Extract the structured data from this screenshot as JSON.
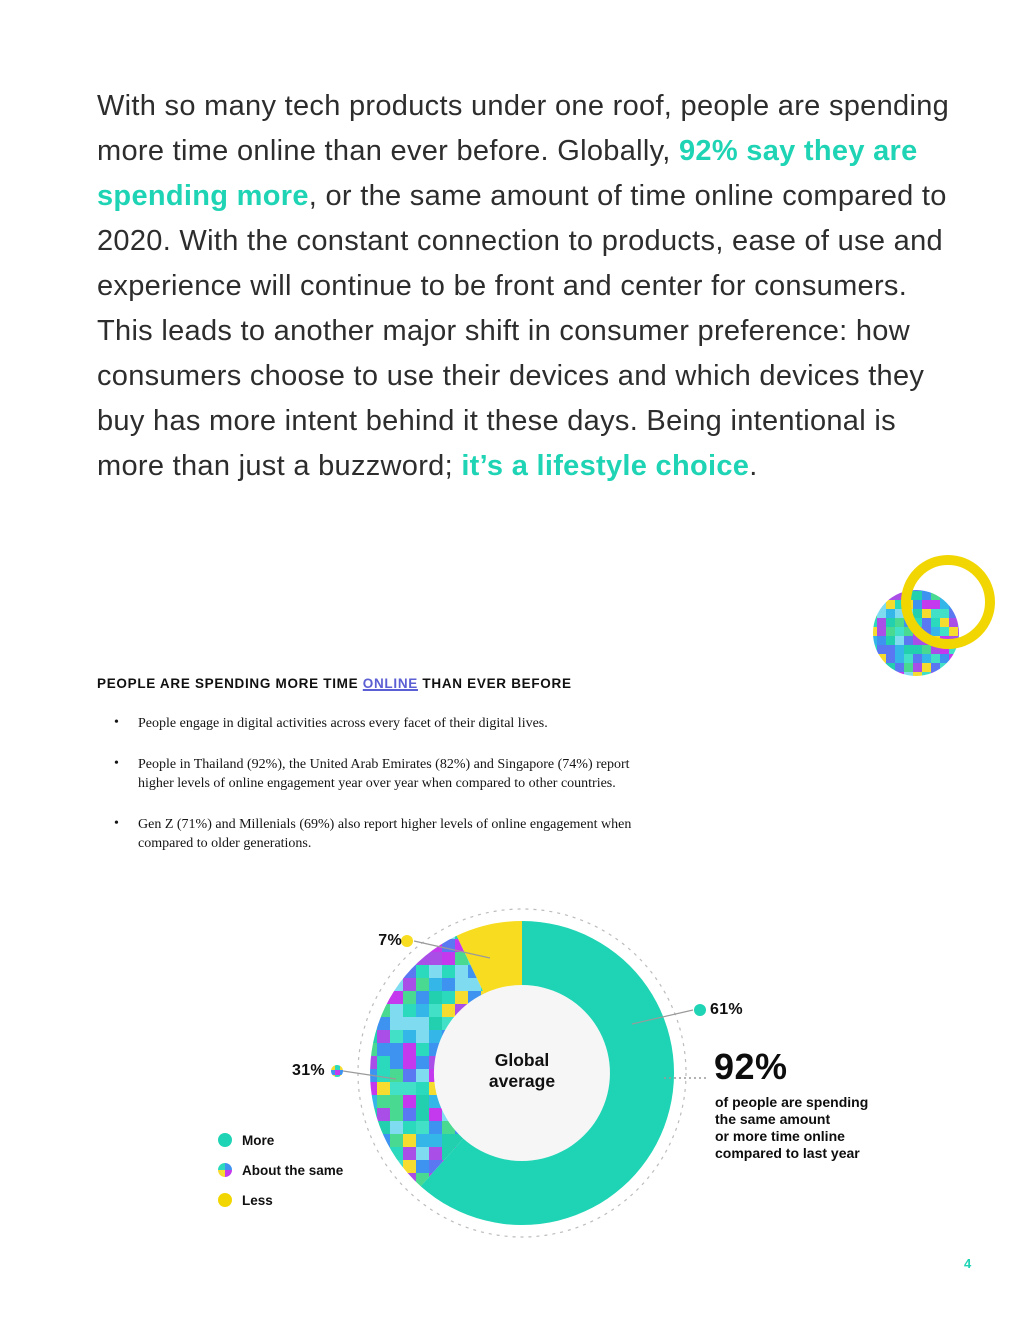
{
  "colors": {
    "accent": "#1fd4b4",
    "yellow_ring": "#f2d602",
    "chart_yellow": "#f8dc20",
    "link": "#5c5fd3",
    "leader_line": "#9a9a9a"
  },
  "pixel_palette": [
    "#2bd9bd",
    "#22cfae",
    "#43e0c8",
    "#35b6e8",
    "#3f93f0",
    "#5a78f2",
    "#7fdcf0",
    "#c438ee",
    "#a94fe8",
    "#f5dc2e",
    "#49d990"
  ],
  "intro": {
    "part1": "With so many tech products under one roof, people are spending more time online than ever before. Globally, ",
    "highlight1": "92% say they are spending more",
    "part2": ", or the same amount of time online compared to 2020. With the constant connection to products, ease of use and experience will continue to be front and center for consumers. This leads to another major shift in consumer preference: how consumers choose to use their devices and which devices they buy has more intent behind it these days. Being intentional is more than just a buzzword; ",
    "highlight2": "it’s a lifestyle choice",
    "part3": "."
  },
  "section": {
    "heading_pre": "PEOPLE ARE SPENDING MORE TIME ",
    "heading_link": "ONLINE",
    "heading_post": " THAN EVER BEFORE",
    "bullets": [
      "People engage in digital activities across every facet of their digital lives.",
      "People in Thailand (92%), the United Arab Emirates (82%) and Singapore (74%) report higher levels of online engagement year over year when compared to other countries.",
      "Gen Z (71%) and Millenials (69%) also report higher levels of online engagement when compared to older generations."
    ]
  },
  "chart_data": {
    "type": "pie",
    "subtype": "donut",
    "title": "Global average",
    "center": [
      "Global",
      "average"
    ],
    "categories": [
      "More",
      "About the same",
      "Less"
    ],
    "values": [
      61,
      31,
      7
    ],
    "unit": "%",
    "pct_labels": {
      "more": "61%",
      "same": "31%",
      "less": "7%"
    },
    "legend": [
      "More",
      "About the same",
      "Less"
    ],
    "legend_position": "left",
    "callout": {
      "value": "92%",
      "lines": [
        "of people are spending",
        "the same amount",
        "or more time online",
        "compared to last year"
      ]
    }
  },
  "page_number": "4"
}
